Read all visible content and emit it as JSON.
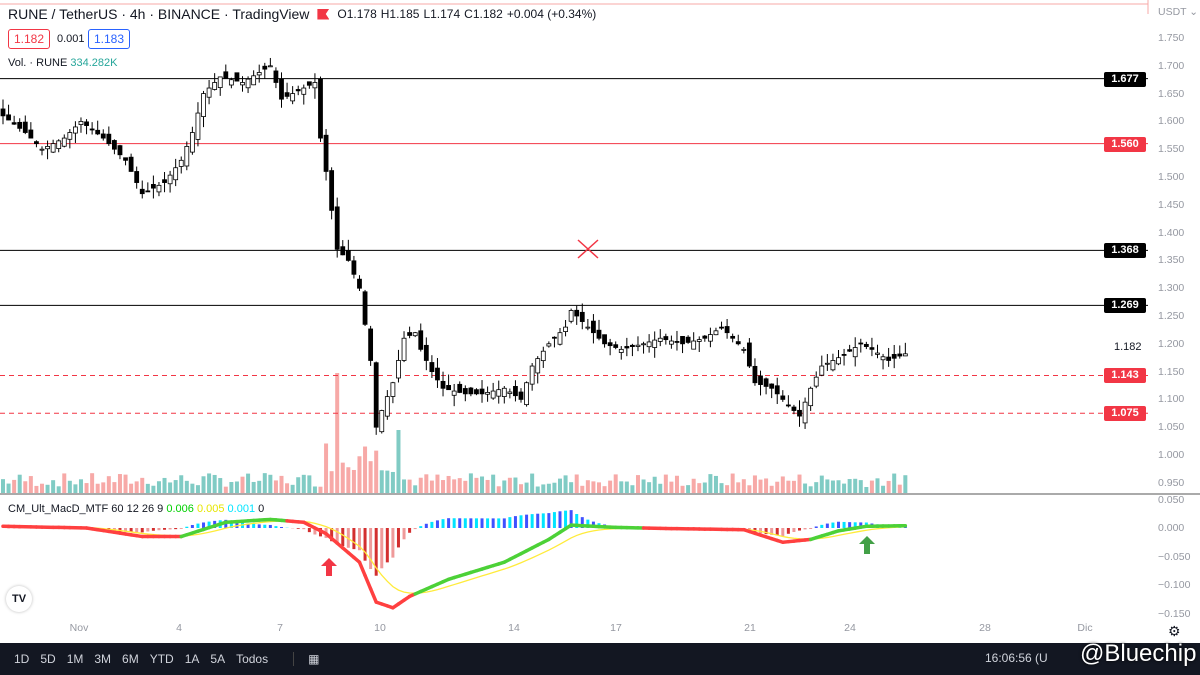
{
  "header": {
    "symbol": "RUNE / TetherUS · 4h · BINANCE · TradingView",
    "open": "O1.178",
    "high": "H1.185",
    "low": "L1.174",
    "close": "C1.182",
    "change": "+0.004 (+0.34%)"
  },
  "quote": {
    "bid": "1.182",
    "spread": "0.001",
    "ask": "1.183"
  },
  "volume": {
    "label": "Vol. · RUNE",
    "value": "334.282K"
  },
  "macd_label": {
    "name": "CM_Ult_MacD_MTF 60 12 26 9",
    "v1": "0.006",
    "v2": "0.005",
    "v3": "0.001",
    "v4": "0"
  },
  "currency": "USDT ⌄",
  "price_axis": [
    "1.750",
    "1.700",
    "1.650",
    "1.600",
    "1.550",
    "1.500",
    "1.450",
    "1.400",
    "1.350",
    "1.300",
    "1.250",
    "1.200",
    "1.150",
    "1.100",
    "1.050",
    "1.000",
    "0.950"
  ],
  "macd_axis": [
    "0.050",
    "0.000",
    "−0.050",
    "−0.100",
    "−0.150"
  ],
  "current_price": "1.182",
  "levels": [
    {
      "price": "1.677",
      "color": "#000000",
      "style": "solid"
    },
    {
      "price": "1.560",
      "color": "#f23645",
      "style": "solid"
    },
    {
      "price": "1.368",
      "color": "#000000",
      "style": "solid"
    },
    {
      "price": "1.269",
      "color": "#000000",
      "style": "solid"
    },
    {
      "price": "1.143",
      "color": "#f23645",
      "style": "dashed"
    },
    {
      "price": "1.075",
      "color": "#f23645",
      "style": "dashed"
    }
  ],
  "x_axis": [
    "Nov",
    "4",
    "7",
    "10",
    "14",
    "17",
    "21",
    "24",
    "28",
    "Dic"
  ],
  "bottom_bar": {
    "ranges": [
      "1D",
      "5D",
      "1M",
      "3M",
      "6M",
      "YTD",
      "1A",
      "5A",
      "Todos"
    ],
    "time": "16:06:56 (U"
  },
  "watermark": "@Bluechip",
  "chart_data": {
    "type": "candlestick",
    "close_keypoints": [
      [
        0,
        1.61
      ],
      [
        4,
        1.58
      ],
      [
        7,
        1.55
      ],
      [
        11,
        1.57
      ],
      [
        14,
        1.6
      ],
      [
        18,
        1.57
      ],
      [
        22,
        1.53
      ],
      [
        25,
        1.47
      ],
      [
        29,
        1.49
      ],
      [
        32,
        1.53
      ],
      [
        34,
        1.58
      ],
      [
        36,
        1.65
      ],
      [
        39,
        1.68
      ],
      [
        43,
        1.67
      ],
      [
        48,
        1.7
      ],
      [
        50,
        1.64
      ],
      [
        54,
        1.66
      ],
      [
        56,
        1.67
      ],
      [
        57,
        1.57
      ],
      [
        58,
        1.51
      ],
      [
        60,
        1.37
      ],
      [
        62,
        1.35
      ],
      [
        64,
        1.3
      ],
      [
        66,
        1.17
      ],
      [
        67,
        1.05
      ],
      [
        68,
        1.08
      ],
      [
        70,
        1.13
      ],
      [
        72,
        1.21
      ],
      [
        74,
        1.22
      ],
      [
        75,
        1.19
      ],
      [
        77,
        1.15
      ],
      [
        79,
        1.12
      ],
      [
        83,
        1.11
      ],
      [
        86,
        1.11
      ],
      [
        90,
        1.12
      ],
      [
        93,
        1.1
      ],
      [
        95,
        1.16
      ],
      [
        98,
        1.2
      ],
      [
        101,
        1.23
      ],
      [
        102,
        1.26
      ],
      [
        105,
        1.23
      ],
      [
        108,
        1.2
      ],
      [
        111,
        1.19
      ],
      [
        115,
        1.2
      ],
      [
        118,
        1.21
      ],
      [
        122,
        1.2
      ],
      [
        126,
        1.21
      ],
      [
        129,
        1.23
      ],
      [
        133,
        1.19
      ],
      [
        135,
        1.13
      ],
      [
        138,
        1.12
      ],
      [
        141,
        1.09
      ],
      [
        143,
        1.07
      ],
      [
        145,
        1.12
      ],
      [
        147,
        1.16
      ],
      [
        151,
        1.18
      ],
      [
        154,
        1.2
      ],
      [
        156,
        1.19
      ],
      [
        159,
        1.17
      ],
      [
        162,
        1.182
      ]
    ],
    "macd_keypoints": [
      [
        0,
        0.003
      ],
      [
        15,
        0.0
      ],
      [
        25,
        -0.015
      ],
      [
        32,
        -0.015
      ],
      [
        40,
        0.01
      ],
      [
        48,
        0.015
      ],
      [
        54,
        0.01
      ],
      [
        58,
        -0.01
      ],
      [
        64,
        -0.06
      ],
      [
        67,
        -0.13
      ],
      [
        70,
        -0.14
      ],
      [
        73,
        -0.12
      ],
      [
        80,
        -0.09
      ],
      [
        90,
        -0.06
      ],
      [
        98,
        -0.02
      ],
      [
        102,
        0.005
      ],
      [
        110,
        0.001
      ],
      [
        120,
        -0.001
      ],
      [
        133,
        -0.003
      ],
      [
        140,
        -0.025
      ],
      [
        145,
        -0.02
      ],
      [
        150,
        -0.005
      ],
      [
        155,
        0.003
      ],
      [
        162,
        0.004
      ]
    ],
    "ylim": [
      0.95,
      1.75
    ],
    "macd_ylim": [
      -0.15,
      0.05
    ]
  },
  "colors": {
    "up": "#ffffff",
    "down": "#000000",
    "vol_up": "#80cbc4",
    "vol_down": "#f7a9a7",
    "red": "#f23645"
  }
}
